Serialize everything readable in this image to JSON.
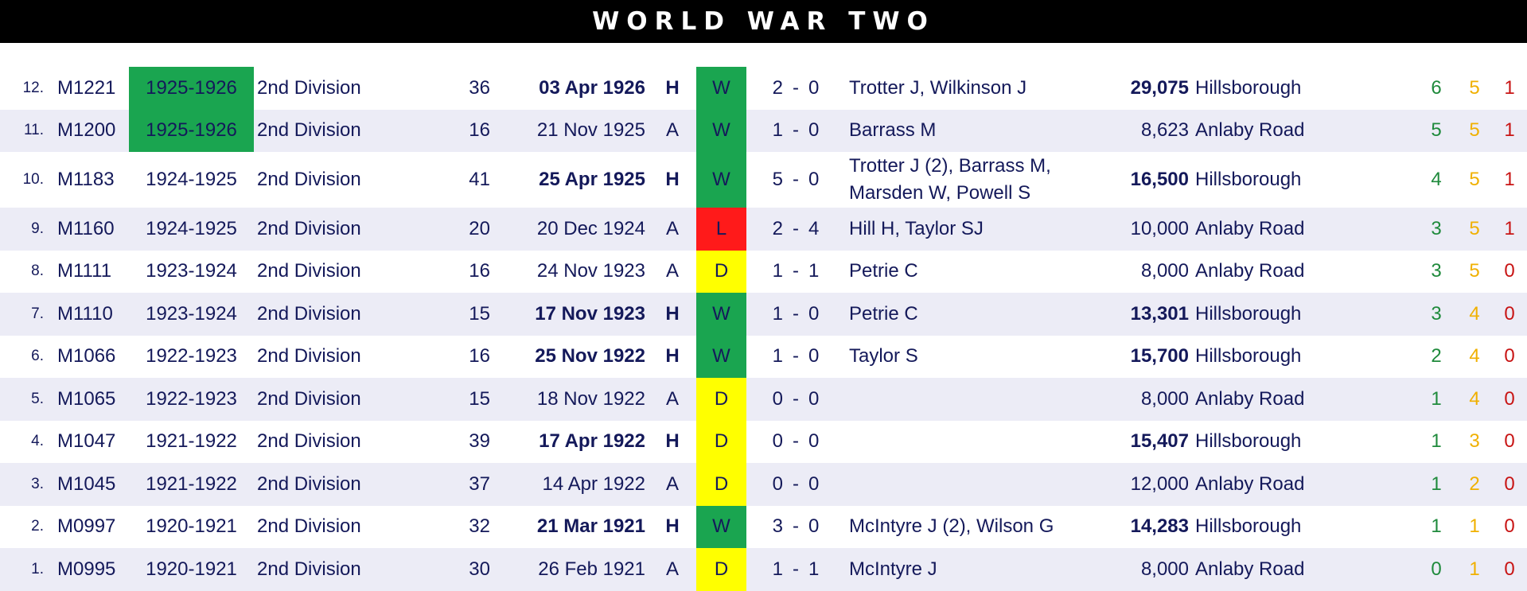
{
  "header": {
    "title": "WORLD WAR TWO"
  },
  "colors": {
    "win": "#1aa550",
    "draw": "#ffff00",
    "loss": "#ff1a1a",
    "text": "#14195a",
    "wins_count": "#1f8a3c",
    "draws_count": "#f0b000",
    "losses_count": "#c81414"
  },
  "rows": [
    {
      "num": "12.",
      "match": "M1221",
      "season": "1925-1926",
      "season_highlight": true,
      "division": "2nd Division",
      "pos": "36",
      "date": "03 Apr 1926",
      "ha": "H",
      "result": "W",
      "home_goals": "2",
      "sep": "-",
      "away_goals": "0",
      "scorers": "Trotter J, Wilkinson J",
      "attendance": "29,075",
      "venue": "Hillsborough",
      "w": "6",
      "d": "5",
      "l": "1"
    },
    {
      "num": "11.",
      "match": "M1200",
      "season": "1925-1926",
      "season_highlight": true,
      "division": "2nd Division",
      "pos": "16",
      "date": "21 Nov 1925",
      "ha": "A",
      "result": "W",
      "home_goals": "1",
      "sep": "-",
      "away_goals": "0",
      "scorers": "Barrass M",
      "attendance": "8,623",
      "venue": "Anlaby Road",
      "w": "5",
      "d": "5",
      "l": "1"
    },
    {
      "num": "10.",
      "match": "M1183",
      "season": "1924-1925",
      "season_highlight": false,
      "division": "2nd Division",
      "pos": "41",
      "date": "25 Apr 1925",
      "ha": "H",
      "result": "W",
      "home_goals": "5",
      "sep": "-",
      "away_goals": "0",
      "scorers": "Trotter J (2), Barrass M, Marsden W, Powell S",
      "attendance": "16,500",
      "venue": "Hillsborough",
      "w": "4",
      "d": "5",
      "l": "1"
    },
    {
      "num": "9.",
      "match": "M1160",
      "season": "1924-1925",
      "season_highlight": false,
      "division": "2nd Division",
      "pos": "20",
      "date": "20 Dec 1924",
      "ha": "A",
      "result": "L",
      "home_goals": "2",
      "sep": "-",
      "away_goals": "4",
      "scorers": "Hill H, Taylor SJ",
      "attendance": "10,000",
      "venue": "Anlaby Road",
      "w": "3",
      "d": "5",
      "l": "1"
    },
    {
      "num": "8.",
      "match": "M1111",
      "season": "1923-1924",
      "season_highlight": false,
      "division": "2nd Division",
      "pos": "16",
      "date": "24 Nov 1923",
      "ha": "A",
      "result": "D",
      "home_goals": "1",
      "sep": "-",
      "away_goals": "1",
      "scorers": "Petrie C",
      "attendance": "8,000",
      "venue": "Anlaby Road",
      "w": "3",
      "d": "5",
      "l": "0"
    },
    {
      "num": "7.",
      "match": "M1110",
      "season": "1923-1924",
      "season_highlight": false,
      "division": "2nd Division",
      "pos": "15",
      "date": "17 Nov 1923",
      "ha": "H",
      "result": "W",
      "home_goals": "1",
      "sep": "-",
      "away_goals": "0",
      "scorers": "Petrie C",
      "attendance": "13,301",
      "venue": "Hillsborough",
      "w": "3",
      "d": "4",
      "l": "0"
    },
    {
      "num": "6.",
      "match": "M1066",
      "season": "1922-1923",
      "season_highlight": false,
      "division": "2nd Division",
      "pos": "16",
      "date": "25 Nov 1922",
      "ha": "H",
      "result": "W",
      "home_goals": "1",
      "sep": "-",
      "away_goals": "0",
      "scorers": "Taylor S",
      "attendance": "15,700",
      "venue": "Hillsborough",
      "w": "2",
      "d": "4",
      "l": "0"
    },
    {
      "num": "5.",
      "match": "M1065",
      "season": "1922-1923",
      "season_highlight": false,
      "division": "2nd Division",
      "pos": "15",
      "date": "18 Nov 1922",
      "ha": "A",
      "result": "D",
      "home_goals": "0",
      "sep": "-",
      "away_goals": "0",
      "scorers": "",
      "attendance": "8,000",
      "venue": "Anlaby Road",
      "w": "1",
      "d": "4",
      "l": "0"
    },
    {
      "num": "4.",
      "match": "M1047",
      "season": "1921-1922",
      "season_highlight": false,
      "division": "2nd Division",
      "pos": "39",
      "date": "17 Apr 1922",
      "ha": "H",
      "result": "D",
      "home_goals": "0",
      "sep": "-",
      "away_goals": "0",
      "scorers": "",
      "attendance": "15,407",
      "venue": "Hillsborough",
      "w": "1",
      "d": "3",
      "l": "0"
    },
    {
      "num": "3.",
      "match": "M1045",
      "season": "1921-1922",
      "season_highlight": false,
      "division": "2nd Division",
      "pos": "37",
      "date": "14 Apr 1922",
      "ha": "A",
      "result": "D",
      "home_goals": "0",
      "sep": "-",
      "away_goals": "0",
      "scorers": "",
      "attendance": "12,000",
      "venue": "Anlaby Road",
      "w": "1",
      "d": "2",
      "l": "0"
    },
    {
      "num": "2.",
      "match": "M0997",
      "season": "1920-1921",
      "season_highlight": false,
      "division": "2nd Division",
      "pos": "32",
      "date": "21 Mar 1921",
      "ha": "H",
      "result": "W",
      "home_goals": "3",
      "sep": "-",
      "away_goals": "0",
      "scorers": "McIntyre J (2), Wilson G",
      "attendance": "14,283",
      "venue": "Hillsborough",
      "w": "1",
      "d": "1",
      "l": "0"
    },
    {
      "num": "1.",
      "match": "M0995",
      "season": "1920-1921",
      "season_highlight": false,
      "division": "2nd Division",
      "pos": "30",
      "date": "26 Feb 1921",
      "ha": "A",
      "result": "D",
      "home_goals": "1",
      "sep": "-",
      "away_goals": "1",
      "scorers": "McIntyre J",
      "attendance": "8,000",
      "venue": "Anlaby Road",
      "w": "0",
      "d": "1",
      "l": "0"
    }
  ]
}
